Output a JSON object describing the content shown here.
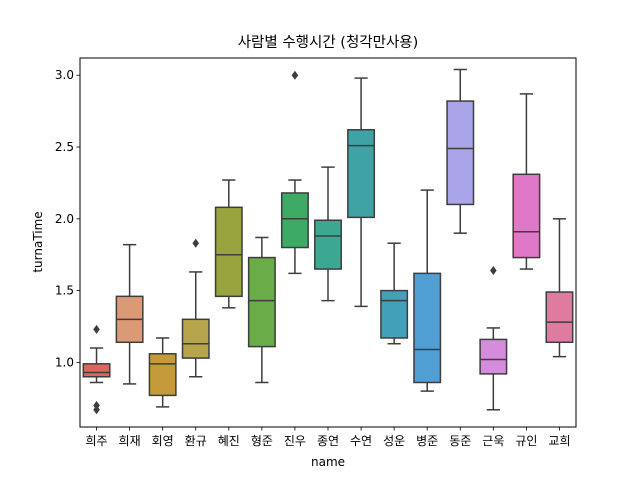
{
  "chart_data": {
    "type": "box",
    "title": "사람별 수행시간 (청각만사용)",
    "xlabel": "name",
    "ylabel": "turnaTime",
    "ylim": [
      0.55,
      3.12
    ],
    "yticks": [
      1.0,
      1.5,
      2.0,
      2.5,
      3.0
    ],
    "ytick_labels": [
      "1.0",
      "1.5",
      "2.0",
      "2.5",
      "3.0"
    ],
    "grid": false,
    "legend": "none",
    "categories": [
      "희주",
      "희재",
      "회영",
      "환규",
      "혜진",
      "형준",
      "진우",
      "종연",
      "수연",
      "성운",
      "병준",
      "동준",
      "근욱",
      "규인",
      "교희"
    ],
    "boxes": [
      {
        "name": "희주",
        "color": "#d9675a",
        "whislo": 0.86,
        "q1": 0.9,
        "med": 0.93,
        "q3": 0.99,
        "whishi": 1.1,
        "fliers": [
          1.23,
          0.7,
          0.67
        ]
      },
      {
        "name": "희재",
        "color": "#db9a76",
        "whislo": 0.85,
        "q1": 1.14,
        "med": 1.3,
        "q3": 1.46,
        "whishi": 1.82,
        "fliers": []
      },
      {
        "name": "회영",
        "color": "#c49a3a",
        "whislo": 0.69,
        "q1": 0.77,
        "med": 0.99,
        "q3": 1.06,
        "whishi": 1.17,
        "fliers": []
      },
      {
        "name": "환규",
        "color": "#b6a54a",
        "whislo": 0.9,
        "q1": 1.03,
        "med": 1.13,
        "q3": 1.3,
        "whishi": 1.63,
        "fliers": [
          1.83
        ]
      },
      {
        "name": "혜진",
        "color": "#98a43e",
        "whislo": 1.38,
        "q1": 1.46,
        "med": 1.75,
        "q3": 2.08,
        "whishi": 2.27,
        "fliers": []
      },
      {
        "name": "형준",
        "color": "#6aac48",
        "whislo": 0.86,
        "q1": 1.11,
        "med": 1.43,
        "q3": 1.73,
        "whishi": 1.87,
        "fliers": []
      },
      {
        "name": "진우",
        "color": "#3daa66",
        "whislo": 1.62,
        "q1": 1.8,
        "med": 2.0,
        "q3": 2.18,
        "whishi": 2.27,
        "fliers": [
          3.0
        ]
      },
      {
        "name": "종연",
        "color": "#3da891",
        "whislo": 1.43,
        "q1": 1.65,
        "med": 1.88,
        "q3": 1.99,
        "whishi": 2.36,
        "fliers": []
      },
      {
        "name": "수연",
        "color": "#3fa3a6",
        "whislo": 1.39,
        "q1": 2.01,
        "med": 2.51,
        "q3": 2.62,
        "whishi": 2.98,
        "fliers": []
      },
      {
        "name": "성운",
        "color": "#42a0b8",
        "whislo": 1.13,
        "q1": 1.17,
        "med": 1.43,
        "q3": 1.5,
        "whishi": 1.83,
        "fliers": []
      },
      {
        "name": "병준",
        "color": "#4f9fd5",
        "whislo": 0.8,
        "q1": 0.86,
        "med": 1.09,
        "q3": 1.62,
        "whishi": 2.2,
        "fliers": []
      },
      {
        "name": "동준",
        "color": "#a9a5e8",
        "whislo": 1.9,
        "q1": 2.1,
        "med": 2.49,
        "q3": 2.82,
        "whishi": 3.04,
        "fliers": []
      },
      {
        "name": "근욱",
        "color": "#d58cdc",
        "whislo": 0.67,
        "q1": 0.92,
        "med": 1.02,
        "q3": 1.16,
        "whishi": 1.24,
        "fliers": [
          1.64
        ]
      },
      {
        "name": "규인",
        "color": "#df78c6",
        "whislo": 1.65,
        "q1": 1.73,
        "med": 1.91,
        "q3": 2.31,
        "whishi": 2.87,
        "fliers": []
      },
      {
        "name": "교희",
        "color": "#e17aa0",
        "whislo": 1.04,
        "q1": 1.14,
        "med": 1.28,
        "q3": 1.49,
        "whishi": 2.0,
        "fliers": []
      }
    ]
  }
}
